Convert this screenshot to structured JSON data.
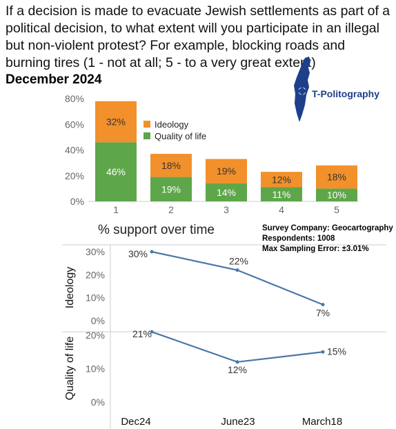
{
  "header": {
    "question": "If a decision is made to evacuate Jewish settlements as part of a political decision, to what extent will you participate in an illegal but non-violent protest? For example, blocking roads and burning tires (1 - not at all; 5 - to a very great extent)",
    "date": "December 2024"
  },
  "logo": {
    "name": "T-Politography",
    "icon": "israel-map-icon"
  },
  "survey": {
    "company": "Survey Company: Geocartography",
    "respondents": "Respondents: 1008",
    "error": "Max Sampling Error: ±3.01%"
  },
  "line_section": {
    "title": "% support over time"
  },
  "colors": {
    "ideology": "#f2902b",
    "quality": "#5ea64a",
    "line": "#4a77a8",
    "logo": "#1e3f8a"
  },
  "chart_data": [
    {
      "type": "bar",
      "stacked": true,
      "categories": [
        "1",
        "2",
        "3",
        "4",
        "5"
      ],
      "series": [
        {
          "name": "Quality of life",
          "values": [
            46,
            19,
            14,
            11,
            10
          ],
          "labels": [
            "46%",
            "19%",
            "14%",
            "11%",
            "10%"
          ]
        },
        {
          "name": "Ideology",
          "values": [
            32,
            18,
            19,
            12,
            18
          ],
          "labels": [
            "32%",
            "18%",
            "19%",
            "12%",
            "18%"
          ]
        }
      ],
      "yticks": [
        "0%",
        "20%",
        "40%",
        "60%",
        "80%"
      ],
      "ylim": [
        0,
        80
      ],
      "legend": "top-right"
    },
    {
      "type": "line",
      "panel_label": "Ideology",
      "x": [
        "Dec24",
        "June23",
        "March18"
      ],
      "values": [
        30,
        22,
        7
      ],
      "labels": [
        "30%",
        "22%",
        "7%"
      ],
      "yticks": [
        "0%",
        "10%",
        "20%",
        "30%"
      ],
      "ylim": [
        0,
        30
      ]
    },
    {
      "type": "line",
      "panel_label": "Quality of life",
      "x": [
        "Dec24",
        "June23",
        "March18"
      ],
      "values": [
        21,
        12,
        15
      ],
      "labels": [
        "21%",
        "12%",
        "15%"
      ],
      "yticks": [
        "0%",
        "10%",
        "20%"
      ],
      "ylim": [
        0,
        20
      ]
    }
  ]
}
